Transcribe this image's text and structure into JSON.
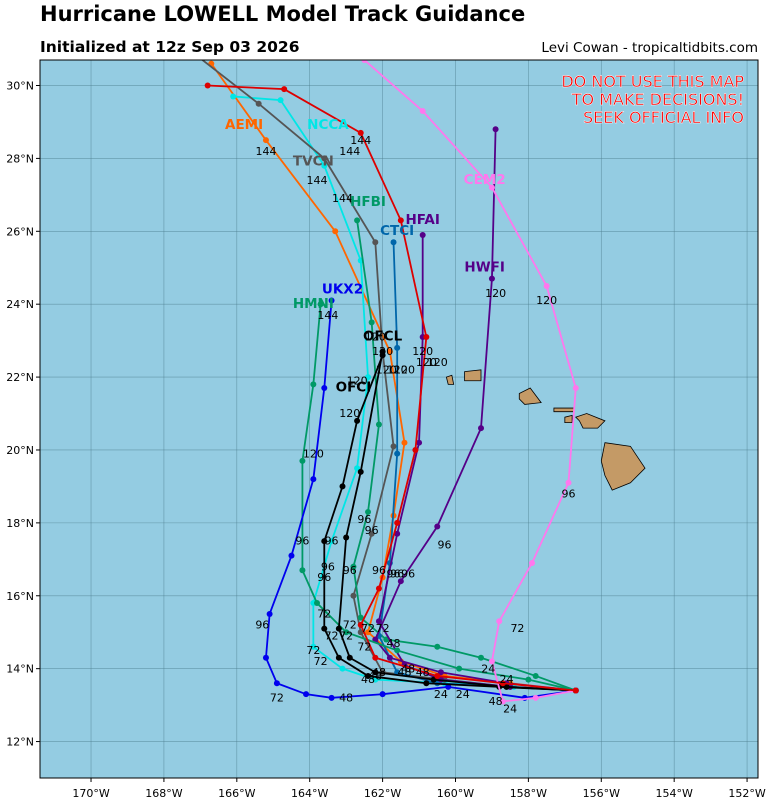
{
  "header": {
    "title": "Hurricane LOWELL Model Track Guidance",
    "subtitle": "Initialized at 12z Sep 03 2026",
    "credit": "Levi Cowan - tropicaltidbits.com"
  },
  "warning": {
    "lines": [
      "DO NOT USE THIS MAP",
      "TO MAKE DECISIONS!",
      "SEEK OFFICIAL INFO"
    ],
    "color": "#ff0000"
  },
  "map": {
    "ocean_color": "#94cce2",
    "land_color": "#c49a66",
    "lon_range": [
      -171.4,
      -151.7
    ],
    "lat_range": [
      11.0,
      30.7
    ],
    "lon_ticks": [
      -170,
      -168,
      -166,
      -164,
      -162,
      -160,
      -158,
      -156,
      -154,
      -152
    ],
    "lat_ticks": [
      12,
      14,
      16,
      18,
      20,
      22,
      24,
      26,
      28,
      30
    ],
    "lon_tick_labels": [
      "170°W",
      "168°W",
      "166°W",
      "164°W",
      "162°W",
      "160°W",
      "158°W",
      "156°W",
      "154°W",
      "152°W"
    ],
    "lat_tick_labels": [
      "12°N",
      "14°N",
      "16°N",
      "18°N",
      "20°N",
      "22°N",
      "24°N",
      "26°N",
      "28°N",
      "30°N"
    ]
  },
  "models": [
    {
      "name": "AEMI",
      "color": "#ff6600",
      "label_pos": [
        -165.8,
        28.8
      ],
      "hour_labels": [
        [
          -165.2,
          28.1,
          "144"
        ]
      ],
      "track": [
        [
          -156.7,
          13.4
        ],
        [
          -158.5,
          13.6
        ],
        [
          -160.3,
          13.8
        ],
        [
          -161.5,
          14.2
        ],
        [
          -162.4,
          15.0
        ],
        [
          -162.0,
          16.5
        ],
        [
          -161.7,
          18.2
        ],
        [
          -161.4,
          20.2
        ],
        [
          -161.8,
          22.7
        ],
        [
          -163.3,
          26.0
        ],
        [
          -165.2,
          28.5
        ],
        [
          -166.7,
          30.6
        ]
      ]
    },
    {
      "name": "NCCA",
      "color": "#00e6e6",
      "label_pos": [
        -163.5,
        28.8
      ],
      "hour_labels": [
        [
          -162.9,
          28.1,
          "144"
        ]
      ],
      "track": [
        [
          -156.7,
          13.4
        ],
        [
          -158.4,
          13.5
        ],
        [
          -160.3,
          13.6
        ],
        [
          -162.2,
          13.7
        ],
        [
          -163.1,
          14.0
        ],
        [
          -163.9,
          14.6
        ],
        [
          -163.9,
          15.8
        ],
        [
          -163.4,
          17.5
        ],
        [
          -162.7,
          19.5
        ],
        [
          -162.4,
          22.0
        ],
        [
          -162.6,
          25.2
        ],
        [
          -163.6,
          27.8
        ],
        [
          -164.8,
          29.6
        ],
        [
          -166.1,
          29.7
        ]
      ]
    },
    {
      "name": "TVCN",
      "color": "#555555",
      "label_pos": [
        -163.9,
        27.8
      ],
      "hour_labels": [
        [
          -163.8,
          27.3,
          "144"
        ],
        [
          -163.1,
          26.8,
          "144"
        ]
      ],
      "track": [
        [
          -156.7,
          13.4
        ],
        [
          -158.5,
          13.5
        ],
        [
          -160.3,
          13.7
        ],
        [
          -162.0,
          13.9
        ],
        [
          -162.6,
          15.0
        ],
        [
          -162.8,
          16.0
        ],
        [
          -162.3,
          17.7
        ],
        [
          -161.7,
          20.1
        ],
        [
          -162.0,
          22.7
        ],
        [
          -162.2,
          25.7
        ],
        [
          -163.6,
          28.0
        ],
        [
          -165.4,
          29.5
        ],
        [
          -167.2,
          30.9
        ]
      ]
    },
    {
      "name": "HFBI",
      "color": "#009966",
      "label_pos": [
        -162.4,
        26.7
      ],
      "hour_labels": [
        [
          -162.2,
          23.0,
          "120"
        ]
      ],
      "track": [
        [
          -156.7,
          13.4
        ],
        [
          -157.8,
          13.8
        ],
        [
          -159.3,
          14.3
        ],
        [
          -160.5,
          14.6
        ],
        [
          -161.9,
          14.8
        ],
        [
          -162.6,
          15.4
        ],
        [
          -162.8,
          16.8
        ],
        [
          -162.4,
          18.3
        ],
        [
          -162.1,
          20.7
        ],
        [
          -162.3,
          23.5
        ],
        [
          -162.7,
          26.3
        ]
      ]
    },
    {
      "name": "CTCI",
      "color": "#0066aa",
      "label_pos": [
        -161.6,
        25.9
      ],
      "hour_labels": [
        [
          -162.0,
          22.6,
          "120"
        ]
      ],
      "track": [
        [
          -156.7,
          13.4
        ],
        [
          -158.6,
          13.5
        ],
        [
          -160.5,
          13.6
        ],
        [
          -161.6,
          13.9
        ],
        [
          -162.1,
          14.9
        ],
        [
          -161.8,
          16.9
        ],
        [
          -161.6,
          19.9
        ],
        [
          -161.6,
          22.8
        ],
        [
          -161.7,
          25.7
        ]
      ]
    },
    {
      "name": "HFAI",
      "color": "#550088",
      "label_pos": [
        -160.9,
        26.2
      ],
      "hour_labels": [
        [
          -160.9,
          22.6,
          "120"
        ]
      ],
      "track": [
        [
          -156.7,
          13.4
        ],
        [
          -158.5,
          13.5
        ],
        [
          -160.4,
          13.7
        ],
        [
          -161.4,
          14.1
        ],
        [
          -162.1,
          15.3
        ],
        [
          -161.6,
          17.7
        ],
        [
          -161.0,
          20.2
        ],
        [
          -160.9,
          23.1
        ],
        [
          -160.9,
          25.9
        ]
      ]
    },
    {
      "name": "HWFI",
      "color": "#550088",
      "label_pos": [
        -159.2,
        24.9
      ],
      "hour_labels": [
        [
          -158.9,
          24.2,
          "120"
        ]
      ],
      "track": [
        [
          -156.7,
          13.4
        ],
        [
          -158.6,
          13.6
        ],
        [
          -160.4,
          13.9
        ],
        [
          -161.8,
          14.3
        ],
        [
          -162.2,
          14.8
        ],
        [
          -161.5,
          16.4
        ],
        [
          -160.5,
          17.9
        ],
        [
          -159.3,
          20.6
        ],
        [
          -159.0,
          24.7
        ],
        [
          -158.9,
          28.8
        ]
      ]
    },
    {
      "name": "HMNI",
      "color": "#009966",
      "label_pos": [
        -163.9,
        23.9
      ],
      "hour_labels": [
        [
          -163.5,
          23.6,
          "144"
        ]
      ],
      "track": [
        [
          -156.7,
          13.4
        ],
        [
          -158.0,
          13.7
        ],
        [
          -159.9,
          14.0
        ],
        [
          -161.6,
          14.5
        ],
        [
          -163.0,
          15.0
        ],
        [
          -163.8,
          15.8
        ],
        [
          -164.2,
          16.7
        ],
        [
          -164.2,
          19.7
        ],
        [
          -163.9,
          21.8
        ],
        [
          -163.7,
          24.0
        ]
      ]
    },
    {
      "name": "UKX2",
      "color": "#0000ee",
      "label_pos": [
        -163.1,
        24.3
      ],
      "hour_labels": [
        [
          -163.9,
          19.8,
          "120"
        ]
      ],
      "track": [
        [
          -156.7,
          13.4
        ],
        [
          -158.1,
          13.2
        ],
        [
          -160.2,
          13.5
        ],
        [
          -162.0,
          13.3
        ],
        [
          -163.4,
          13.2
        ],
        [
          -164.1,
          13.3
        ],
        [
          -164.9,
          13.6
        ],
        [
          -165.2,
          14.3
        ],
        [
          -165.1,
          15.5
        ],
        [
          -164.5,
          17.1
        ],
        [
          -163.9,
          19.2
        ],
        [
          -163.6,
          21.7
        ],
        [
          -163.4,
          24.1
        ]
      ]
    },
    {
      "name": "OFCL",
      "color": "#000000",
      "label_pos": [
        -162.0,
        23.0
      ],
      "hour_labels": [
        [
          -162.7,
          21.8,
          "120"
        ],
        [
          -161.9,
          22.1,
          "120"
        ]
      ],
      "track": [
        [
          -156.7,
          13.4
        ],
        [
          -158.8,
          13.5
        ],
        [
          -160.8,
          13.6
        ],
        [
          -162.4,
          13.8
        ],
        [
          -163.2,
          14.3
        ],
        [
          -163.6,
          15.1
        ],
        [
          -163.6,
          17.5
        ],
        [
          -163.1,
          19.0
        ],
        [
          -162.7,
          20.8
        ],
        [
          -162.0,
          22.6
        ]
      ]
    },
    {
      "name": "OFCI",
      "color": "#000000",
      "label_pos": [
        -162.8,
        21.6
      ],
      "hour_labels": [
        [
          -162.9,
          20.9,
          "120"
        ]
      ],
      "track": [
        [
          -156.7,
          13.4
        ],
        [
          -158.6,
          13.5
        ],
        [
          -160.6,
          13.7
        ],
        [
          -162.2,
          13.9
        ],
        [
          -162.9,
          14.3
        ],
        [
          -163.2,
          15.1
        ],
        [
          -163.0,
          17.6
        ],
        [
          -162.6,
          19.4
        ],
        [
          -162.0,
          22.7
        ]
      ]
    },
    {
      "name": "CEM2",
      "color": "#ff77ee",
      "label_pos": [
        -159.2,
        27.3
      ],
      "hour_labels": [
        [
          -157.5,
          24.0,
          "120"
        ]
      ],
      "track": [
        [
          -156.7,
          13.4
        ],
        [
          -157.8,
          13.2
        ],
        [
          -158.7,
          13.1
        ],
        [
          -159.0,
          14.2
        ],
        [
          -158.8,
          15.3
        ],
        [
          -157.9,
          16.9
        ],
        [
          -156.9,
          19.1
        ],
        [
          -156.7,
          21.7
        ],
        [
          -157.5,
          24.5
        ],
        [
          -159.0,
          27.2
        ],
        [
          -160.9,
          29.3
        ],
        [
          -162.5,
          30.7
        ]
      ]
    },
    {
      "name": "",
      "color": "#dd0000",
      "label_pos": null,
      "hour_labels": [
        [
          -162.6,
          28.4,
          "144"
        ]
      ],
      "track": [
        [
          -156.7,
          13.4
        ],
        [
          -158.7,
          13.6
        ],
        [
          -160.5,
          13.8
        ],
        [
          -162.2,
          14.3
        ],
        [
          -162.6,
          15.2
        ],
        [
          -162.1,
          16.2
        ],
        [
          -161.6,
          18.0
        ],
        [
          -161.1,
          20.0
        ],
        [
          -160.8,
          23.1
        ],
        [
          -161.5,
          26.3
        ],
        [
          -162.6,
          28.7
        ],
        [
          -164.7,
          29.9
        ],
        [
          -166.8,
          30.0
        ]
      ]
    }
  ],
  "misc_hour_labels": [
    [
      -164.9,
      13.1,
      "72"
    ],
    [
      -163.0,
      13.1,
      "48"
    ],
    [
      -160.4,
      13.2,
      "24"
    ],
    [
      -159.8,
      13.2,
      "24"
    ],
    [
      -158.9,
      13.0,
      "48"
    ],
    [
      -158.5,
      12.8,
      "24"
    ],
    [
      -162.4,
      13.6,
      "48"
    ],
    [
      -162.2,
      13.7,
      "48"
    ],
    [
      -162.1,
      13.8,
      "48"
    ],
    [
      -161.4,
      13.8,
      "48"
    ],
    [
      -160.9,
      13.8,
      "48"
    ],
    [
      -159.1,
      13.9,
      "24"
    ],
    [
      -158.6,
      13.6,
      "24"
    ],
    [
      -163.9,
      14.4,
      "72"
    ],
    [
      -163.7,
      14.1,
      "72"
    ],
    [
      -163.4,
      14.8,
      "72"
    ],
    [
      -163.0,
      14.8,
      "72"
    ],
    [
      -162.5,
      14.5,
      "72"
    ],
    [
      -162.9,
      15.1,
      "72"
    ],
    [
      -162.4,
      15.0,
      "72"
    ],
    [
      -162.0,
      15.0,
      "72"
    ],
    [
      -161.7,
      14.6,
      "48"
    ],
    [
      -163.6,
      15.4,
      "72"
    ],
    [
      -161.3,
      13.9,
      "48"
    ],
    [
      -158.3,
      15.0,
      "72"
    ],
    [
      -165.3,
      15.1,
      "96"
    ],
    [
      -164.2,
      17.4,
      "96"
    ],
    [
      -163.4,
      17.4,
      "96"
    ],
    [
      -163.5,
      16.7,
      "96"
    ],
    [
      -163.6,
      16.4,
      "96"
    ],
    [
      -162.9,
      16.6,
      "96"
    ],
    [
      -162.3,
      17.7,
      "96"
    ],
    [
      -162.1,
      16.6,
      "96"
    ],
    [
      -161.6,
      16.5,
      "96"
    ],
    [
      -161.7,
      16.5,
      "96"
    ],
    [
      -161.3,
      16.5,
      "96"
    ],
    [
      -160.3,
      17.3,
      "96"
    ],
    [
      -162.5,
      18.0,
      "96"
    ],
    [
      -156.9,
      18.7,
      "96"
    ],
    [
      -161.6,
      22.1,
      "120"
    ],
    [
      -161.4,
      22.1,
      "120"
    ],
    [
      -160.8,
      22.3,
      "120"
    ],
    [
      -160.5,
      22.3,
      "120"
    ]
  ]
}
